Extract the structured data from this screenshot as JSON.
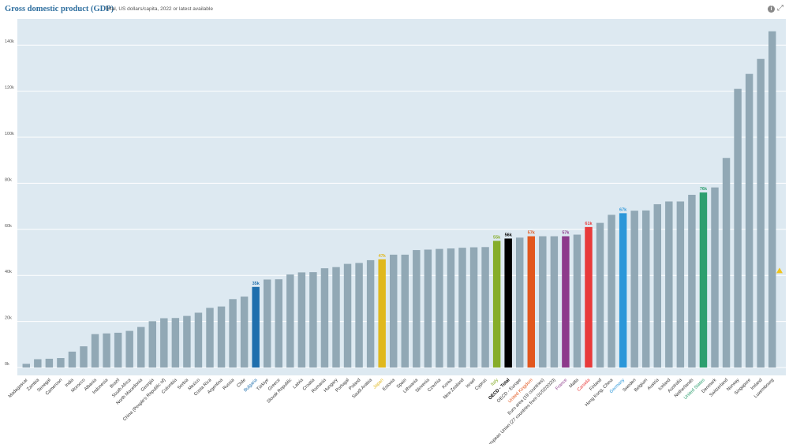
{
  "header": {
    "title": "Gross domestic product (GDP)",
    "subtitle": "Total, US dollars/capita, 2022 or latest available",
    "info_icon": "info-icon",
    "expand_icon": "expand-icon"
  },
  "colors": {
    "plot_bg": "#dde9f1",
    "default_bar": "#91a8b5",
    "grid": "#ffffff",
    "tick_text": "#555555",
    "marker": "#f0c419"
  },
  "chart_data": {
    "type": "bar",
    "title": "Gross domestic product (GDP)",
    "subtitle": "Total, US dollars/capita, 2022 or latest available",
    "ylim": [
      0,
      150000
    ],
    "yticks": [
      0,
      20000,
      40000,
      60000,
      80000,
      100000,
      120000,
      140000
    ],
    "ytick_labels": [
      "0k",
      "20k",
      "40k",
      "60k",
      "80k",
      "100k",
      "120k",
      "140k"
    ],
    "grid": true,
    "categories": [
      "Madagascar",
      "Zambia",
      "Senegal",
      "Cameroon",
      "India",
      "Morocco",
      "Albania",
      "Indonesia",
      "Brazil",
      "South Africa",
      "North Macedonia",
      "Georgia",
      "China (People's Republic of)",
      "Colombia",
      "Serbia",
      "Mexico",
      "Costa Rica",
      "Argentina",
      "Russia",
      "Chile",
      "Bulgaria",
      "Türkiye",
      "Greece",
      "Slovak Republic",
      "Latvia",
      "Croatia",
      "Romania",
      "Hungary",
      "Portugal",
      "Poland",
      "Saudi Arabia",
      "Japan",
      "Estonia",
      "Spain",
      "Lithuania",
      "Slovenia",
      "Czechia",
      "Korea",
      "New Zealand",
      "Israel",
      "Cyprus",
      "Italy",
      "OECD - Total",
      "OECD - Europe",
      "United Kingdom",
      "Euro area (19 countries)",
      "European Union (27 countries from 01/02/2020)",
      "France",
      "Malta",
      "Canada",
      "Finland",
      "Hong Kong, China",
      "Germany",
      "Sweden",
      "Belgium",
      "Austria",
      "Iceland",
      "Australia",
      "Netherlands",
      "United States",
      "Denmark",
      "Switzerland",
      "Norway",
      "Singapore",
      "Ireland",
      "Luxembourg"
    ],
    "values": [
      1600,
      3600,
      3800,
      4100,
      6900,
      9200,
      14500,
      14800,
      15100,
      15900,
      17600,
      20100,
      21400,
      21500,
      22400,
      23800,
      25900,
      26500,
      29700,
      30800,
      35000,
      38200,
      38300,
      40400,
      41300,
      41400,
      43100,
      43600,
      45000,
      45400,
      46600,
      47000,
      49000,
      49000,
      51000,
      51200,
      51500,
      51700,
      52000,
      52200,
      52300,
      55000,
      56000,
      56400,
      57000,
      57000,
      57000,
      57000,
      57700,
      61000,
      62800,
      66300,
      67000,
      68100,
      68200,
      70900,
      72100,
      72100,
      75000,
      76000,
      78200,
      91000,
      121000,
      127500,
      134000,
      146000
    ],
    "bar_colors": {
      "Bulgaria": "#1f6fad",
      "Japan": "#e0b81d",
      "Italy": "#86ad2a",
      "OECD - Total": "#000000",
      "United Kingdom": "#e2571e",
      "France": "#8d3a8b",
      "Canada": "#e83a3a",
      "Germany": "#2b97d9",
      "United States": "#2d9f6f"
    },
    "label_colors": {
      "Bulgaria": "#1f6fad",
      "Japan": "#e0b81d",
      "Italy": "#86ad2a",
      "OECD - Total": "#000000",
      "United Kingdom": "#e2571e",
      "France": "#8d3a8b",
      "Canada": "#e83a3a",
      "Germany": "#2b97d9",
      "United States": "#2d9f6f"
    },
    "data_labels": {
      "Bulgaria": "35k",
      "Japan": "47k",
      "Italy": "55k",
      "OECD - Total": "56k",
      "United Kingdom": "57k",
      "France": "57k",
      "Canada": "61k",
      "Germany": "67k",
      "United States": "76k"
    },
    "bold_labels": [
      "OECD - Total"
    ],
    "marker": {
      "shape": "triangle",
      "value": 42000
    }
  }
}
